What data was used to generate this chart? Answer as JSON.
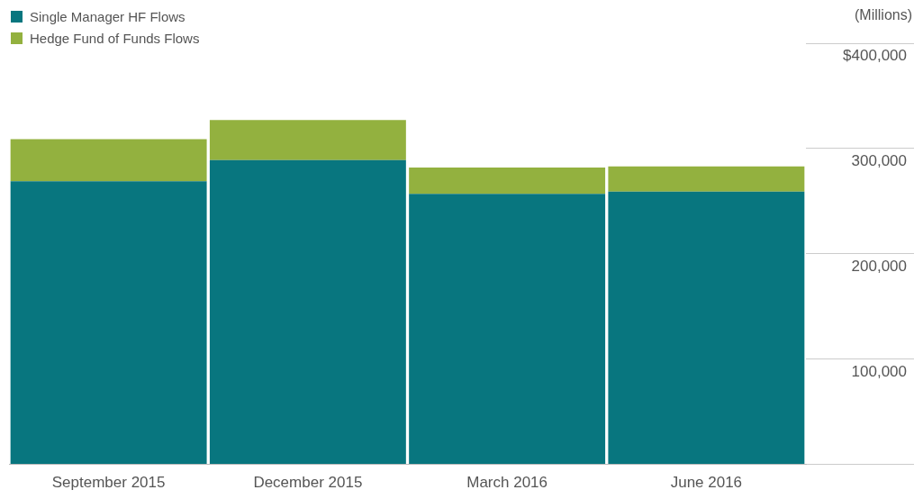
{
  "chart_data": {
    "type": "bar",
    "stacked": true,
    "ylabel": "(Millions)",
    "categories": [
      "September 2015",
      "December 2015",
      "March 2016",
      "June 2016"
    ],
    "series": [
      {
        "name": "Single Manager HF Flows",
        "color": "#08767f",
        "values": [
          269000,
          289000,
          257000,
          259000
        ]
      },
      {
        "name": "Hedge Fund of Funds Flows",
        "color": "#93b13f",
        "values": [
          40000,
          38000,
          25000,
          24000
        ]
      }
    ],
    "ylim": [
      0,
      400000
    ],
    "yticks": [
      {
        "value": 0,
        "label": null
      },
      {
        "value": 100000,
        "label": "100,000"
      },
      {
        "value": 200000,
        "label": "200,000"
      },
      {
        "value": 300000,
        "label": "300,000"
      },
      {
        "value": 400000,
        "label": "$400,000"
      }
    ],
    "legend": "top left"
  }
}
